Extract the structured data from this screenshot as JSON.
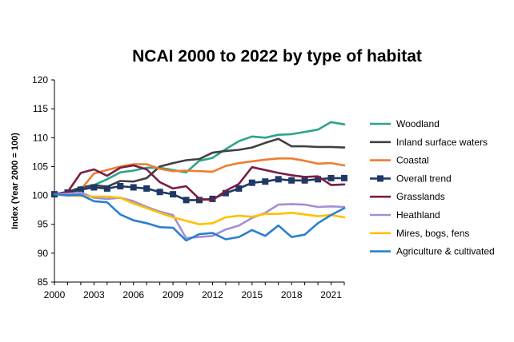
{
  "chart_data": {
    "type": "line",
    "title": "NCAI 2000 to 2022 by type of habitat",
    "xlabel": "",
    "ylabel": "Index (Year 2000 = 100)",
    "ylim": [
      85,
      120
    ],
    "yticks": [
      85,
      90,
      95,
      100,
      105,
      110,
      115,
      120
    ],
    "xlim": [
      2000,
      2022
    ],
    "xticks": [
      2000,
      2003,
      2006,
      2009,
      2012,
      2015,
      2018,
      2021
    ],
    "x": [
      2000,
      2001,
      2002,
      2003,
      2004,
      2005,
      2006,
      2007,
      2008,
      2009,
      2010,
      2011,
      2012,
      2013,
      2014,
      2015,
      2016,
      2017,
      2018,
      2019,
      2020,
      2021,
      2022
    ],
    "legend_position": "right",
    "series": [
      {
        "name": "Woodland",
        "color": "#2ea38b",
        "marker": "none",
        "values": [
          100.2,
          100.6,
          101.0,
          101.8,
          102.8,
          104.0,
          104.3,
          104.8,
          104.8,
          104.4,
          104.0,
          106.0,
          106.5,
          108.0,
          109.4,
          110.2,
          110.0,
          110.5,
          110.6,
          111.0,
          111.4,
          112.7,
          112.3
        ]
      },
      {
        "name": "Inland surface waters",
        "color": "#404040",
        "marker": "none",
        "values": [
          100.2,
          100.6,
          101.4,
          101.8,
          101.5,
          102.5,
          102.4,
          103.0,
          105.0,
          105.6,
          106.1,
          106.3,
          107.4,
          107.7,
          107.9,
          108.3,
          109.1,
          109.8,
          108.5,
          108.5,
          108.4,
          108.4,
          108.3
        ]
      },
      {
        "name": "Coastal",
        "color": "#ee7d31",
        "marker": "none",
        "values": [
          100.2,
          100.4,
          101.0,
          103.8,
          104.4,
          105.0,
          105.4,
          105.4,
          104.6,
          104.2,
          104.3,
          104.2,
          104.1,
          105.1,
          105.6,
          105.9,
          106.2,
          106.4,
          106.4,
          106.0,
          105.5,
          105.6,
          105.2
        ]
      },
      {
        "name": "Overall trend",
        "color": "#1f3864",
        "marker": "square",
        "values": [
          100.2,
          100.5,
          101.0,
          101.4,
          101.2,
          101.6,
          101.4,
          101.2,
          100.6,
          100.2,
          99.2,
          99.2,
          99.4,
          100.4,
          101.2,
          102.2,
          102.4,
          102.8,
          102.6,
          102.6,
          102.8,
          103.0,
          103.0
        ]
      },
      {
        "name": "Grasslands",
        "color": "#7b1d45",
        "marker": "none",
        "values": [
          100.2,
          100.6,
          103.9,
          104.5,
          103.4,
          104.8,
          105.2,
          104.5,
          102.3,
          101.2,
          101.6,
          99.4,
          99.2,
          100.8,
          102.0,
          104.9,
          104.4,
          103.9,
          103.5,
          103.2,
          103.3,
          101.8,
          101.9
        ]
      },
      {
        "name": "Heathland",
        "color": "#a48fd3",
        "marker": "none",
        "values": [
          100.2,
          100.3,
          100.5,
          99.6,
          99.4,
          99.6,
          99.0,
          98.0,
          97.2,
          96.6,
          92.6,
          92.8,
          93.0,
          94.1,
          94.8,
          96.1,
          97.0,
          98.4,
          98.5,
          98.4,
          98.0,
          98.1,
          98.0
        ]
      },
      {
        "name": "Mires, bogs, fens",
        "color": "#ffc000",
        "marker": "none",
        "values": [
          100.2,
          100.0,
          99.9,
          99.8,
          99.8,
          99.6,
          98.6,
          97.8,
          97.0,
          96.2,
          95.6,
          95.0,
          95.2,
          96.2,
          96.5,
          96.3,
          96.8,
          96.8,
          97.0,
          96.7,
          96.4,
          96.6,
          96.2
        ]
      },
      {
        "name": "Agriculture & cultivated",
        "color": "#2a7fd0",
        "marker": "none",
        "values": [
          100.2,
          100.0,
          100.1,
          99.0,
          98.8,
          96.7,
          95.7,
          95.2,
          94.5,
          94.4,
          92.2,
          93.3,
          93.5,
          92.4,
          92.8,
          94.0,
          93.0,
          94.8,
          92.8,
          93.2,
          95.2,
          96.6,
          97.8
        ]
      }
    ]
  }
}
